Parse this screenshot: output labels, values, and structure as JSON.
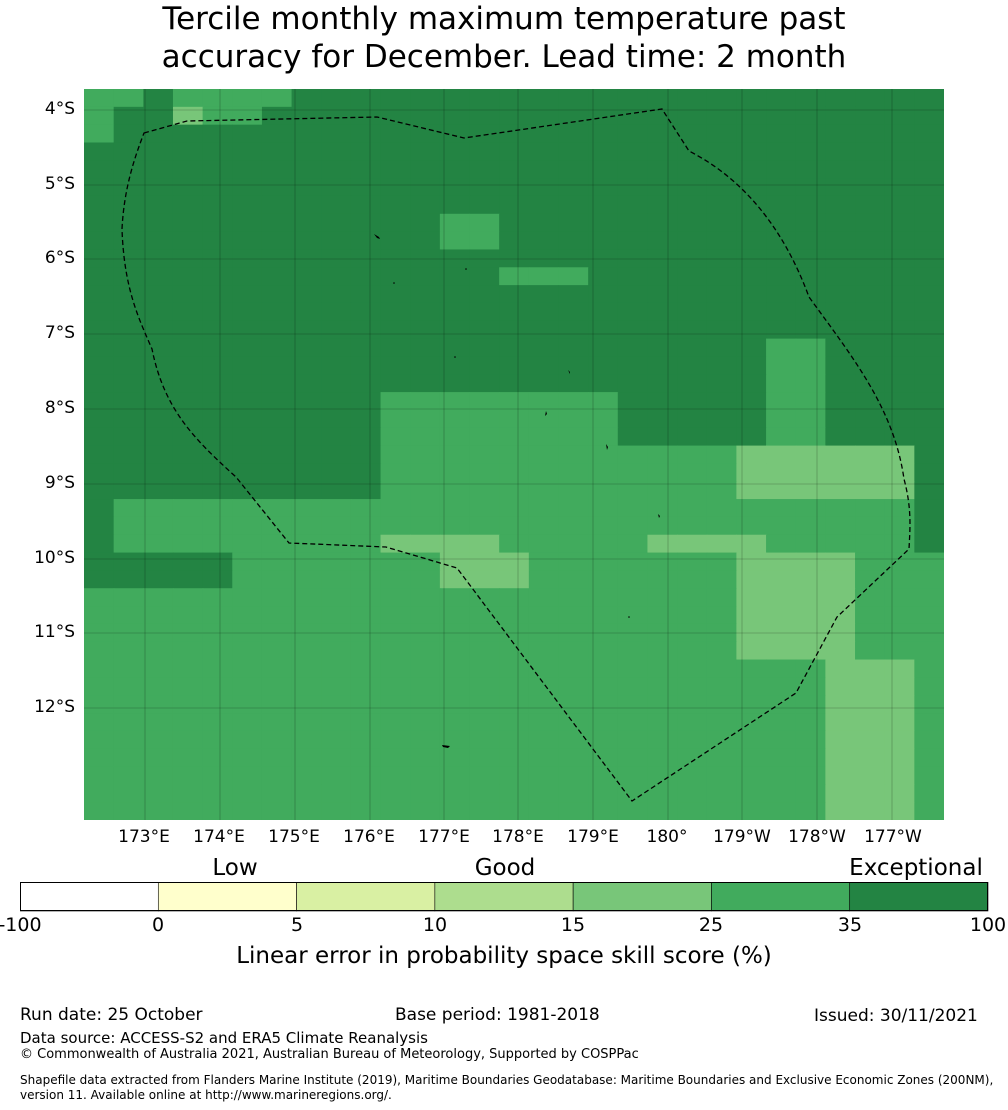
{
  "title": {
    "line1": "Tercile monthly maximum temperature past",
    "line2": "accuracy for December. Lead time: 2 month"
  },
  "map": {
    "lat_labels": [
      "4°S",
      "5°S",
      "6°S",
      "7°S",
      "8°S",
      "9°S",
      "10°S",
      "11°S",
      "12°S"
    ],
    "lon_labels": [
      "173°E",
      "174°E",
      "175°E",
      "176°E",
      "177°E",
      "178°E",
      "179°E",
      "180°",
      "179°W",
      "178°W",
      "177°W"
    ],
    "grid_rows": [
      "55655556666666666666666666666",
      "56645566666666666666666666666",
      "56666666666666666666666666666",
      "66666666666666666666666666666",
      "66666666666666666666666666666",
      "66666666666666666666666666666",
      "66666666666666666666666666666",
      "66666666666655666666666666666",
      "66666666666655666666666666666",
      "66666666666666666666666666666",
      "66666666666666555666666666666",
      "66666666666666666666666666666",
      "66666666666666666666666666666",
      "66666666666666666666666666666",
      "66666666666666666666666556666",
      "66666666666666666666666556666",
      "66666666666666666666666556666",
      "66666666665555555566666556666",
      "66666666665555555566666556666",
      "66666666665555555566666556666",
      "66666666665555555555554444446",
      "66666666665555555555554444446",
      "66666666665555555555554444446",
      "65555555555555555555555555556",
      "65555555555555555555555555556",
      "65555555554444555554444555556",
      "66666555555544455555554444555",
      "66666555555544455555554444555",
      "55555555555555555555554444555",
      "55555555555555555555554444555",
      "55555555555555555555554444555",
      "55555555555555555555554444555",
      "55555555555555555555555554445",
      "55555555555555555555555554445",
      "55555555555555555555555554445",
      "55555555555555555555555554445",
      "55555555555555555555555554445",
      "55555555555555555555555554445",
      "55555555555555555555555554445",
      "55555555555555555555555554445",
      "55555555555555555555555554445"
    ]
  },
  "legend": {
    "categories": [
      "Low",
      "Good",
      "Exceptional"
    ],
    "ticks": [
      "-100",
      "0",
      "5",
      "10",
      "15",
      "25",
      "35",
      "100"
    ],
    "colors": [
      "#ffffff",
      "#ffffcc",
      "#d9f0a3",
      "#addd8e",
      "#78c679",
      "#41ab5d",
      "#238443"
    ],
    "label": "Linear error in probability space skill score (%)"
  },
  "footer": {
    "run_date": "Run date: 25 October",
    "base_period": "Base period: 1981-2018",
    "issued": "Issued: 30/11/2021",
    "data_source": "Data source: ACCESS-S2 and ERA5 Climate Reanalysis",
    "copyright": "© Commonwealth of Australia 2021, Australian Bureau of Meteorology, Supported by COSPPac",
    "shapefile_line1": "Shapefile data extracted from Flanders Marine Institute (2019), Maritime Boundaries Geodatabase: Maritime Boundaries and Exclusive Economic Zones (200NM),",
    "shapefile_line2": "version 11. Available online at http://www.marineregions.org/."
  }
}
